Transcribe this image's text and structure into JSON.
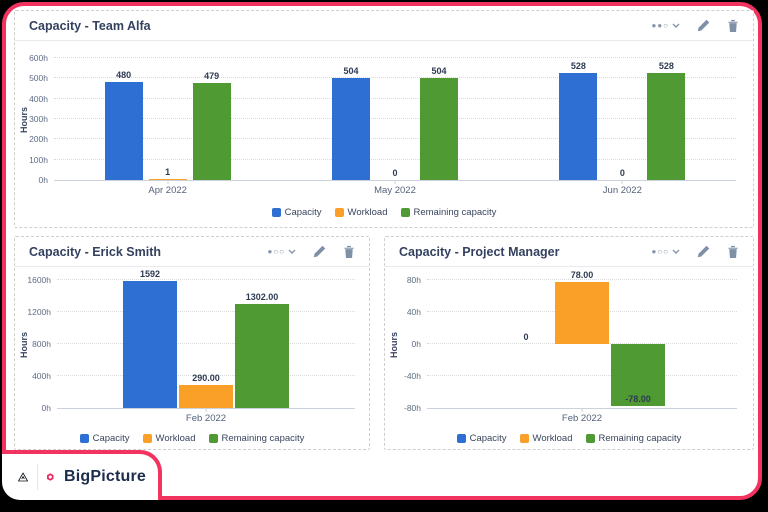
{
  "page": {
    "border_color": "#f23360",
    "background": "#ffffff",
    "outer_background": "#000000"
  },
  "branding": {
    "product_name": "BigPicture",
    "hexagon_color": "#e9295c",
    "text_color": "#1c2c4c"
  },
  "colors": {
    "capacity": "#2d6fd2",
    "workload": "#faa029",
    "remaining_capacity": "#4f9a33"
  },
  "panels": [
    {
      "title": "Capacity - Team Alfa",
      "view_indicator": "●●○",
      "edit_icon": "pencil-icon",
      "delete_icon": "trash-icon"
    },
    {
      "title": "Capacity - Erick Smith",
      "view_indicator": "●○○",
      "edit_icon": "pencil-icon",
      "delete_icon": "trash-icon"
    },
    {
      "title": "Capacity - Project Manager",
      "view_indicator": "●○○",
      "edit_icon": "pencil-icon",
      "delete_icon": "trash-icon"
    }
  ],
  "chart_data": [
    {
      "type": "bar",
      "title": "Capacity - Team Alfa",
      "categories": [
        "Apr 2022",
        "May 2022",
        "Jun 2022"
      ],
      "series": [
        {
          "name": "Capacity",
          "color": "#2d6fd2",
          "values": [
            480,
            504,
            528
          ],
          "labels": [
            "480",
            "504",
            "528"
          ]
        },
        {
          "name": "Workload",
          "color": "#faa029",
          "values": [
            1,
            0,
            0
          ],
          "labels": [
            "1",
            "0",
            "0"
          ]
        },
        {
          "name": "Remaining capacity",
          "color": "#4f9a33",
          "values": [
            479,
            504,
            528
          ],
          "labels": [
            "479",
            "504",
            "528"
          ]
        }
      ],
      "xlabel": "",
      "ylabel": "Hours",
      "ylim": [
        0,
        600
      ],
      "yticks": [
        {
          "value": 0,
          "label": "0h"
        },
        {
          "value": 100,
          "label": "100h"
        },
        {
          "value": 200,
          "label": "200h"
        },
        {
          "value": 300,
          "label": "300h"
        },
        {
          "value": 400,
          "label": "400h"
        },
        {
          "value": 500,
          "label": "500h"
        },
        {
          "value": 600,
          "label": "600h"
        }
      ],
      "grid": true,
      "legend_position": "bottom"
    },
    {
      "type": "bar",
      "title": "Capacity - Erick Smith",
      "categories": [
        "Feb 2022"
      ],
      "series": [
        {
          "name": "Capacity",
          "color": "#2d6fd2",
          "values": [
            1592
          ],
          "labels": [
            "1592"
          ]
        },
        {
          "name": "Workload",
          "color": "#faa029",
          "values": [
            290
          ],
          "labels": [
            "290.00"
          ]
        },
        {
          "name": "Remaining capacity",
          "color": "#4f9a33",
          "values": [
            1302
          ],
          "labels": [
            "1302.00"
          ]
        }
      ],
      "xlabel": "",
      "ylabel": "Hours",
      "ylim": [
        0,
        1600
      ],
      "yticks": [
        {
          "value": 0,
          "label": "0h"
        },
        {
          "value": 400,
          "label": "400h"
        },
        {
          "value": 800,
          "label": "800h"
        },
        {
          "value": 1200,
          "label": "1200h"
        },
        {
          "value": 1600,
          "label": "1600h"
        }
      ],
      "grid": true,
      "legend_position": "bottom"
    },
    {
      "type": "bar",
      "title": "Capacity - Project Manager",
      "categories": [
        "Feb 2022"
      ],
      "series": [
        {
          "name": "Capacity",
          "color": "#2d6fd2",
          "values": [
            0
          ],
          "labels": [
            "0"
          ]
        },
        {
          "name": "Workload",
          "color": "#faa029",
          "values": [
            78
          ],
          "labels": [
            "78.00"
          ]
        },
        {
          "name": "Remaining capacity",
          "color": "#4f9a33",
          "values": [
            -78
          ],
          "labels": [
            "-78.00"
          ]
        }
      ],
      "xlabel": "",
      "ylabel": "Hours",
      "ylim": [
        -80,
        80
      ],
      "yticks": [
        {
          "value": -80,
          "label": "-80h"
        },
        {
          "value": -40,
          "label": "-40h"
        },
        {
          "value": 0,
          "label": "0h"
        },
        {
          "value": 40,
          "label": "40h"
        },
        {
          "value": 80,
          "label": "80h"
        }
      ],
      "grid": true,
      "legend_position": "bottom"
    }
  ]
}
